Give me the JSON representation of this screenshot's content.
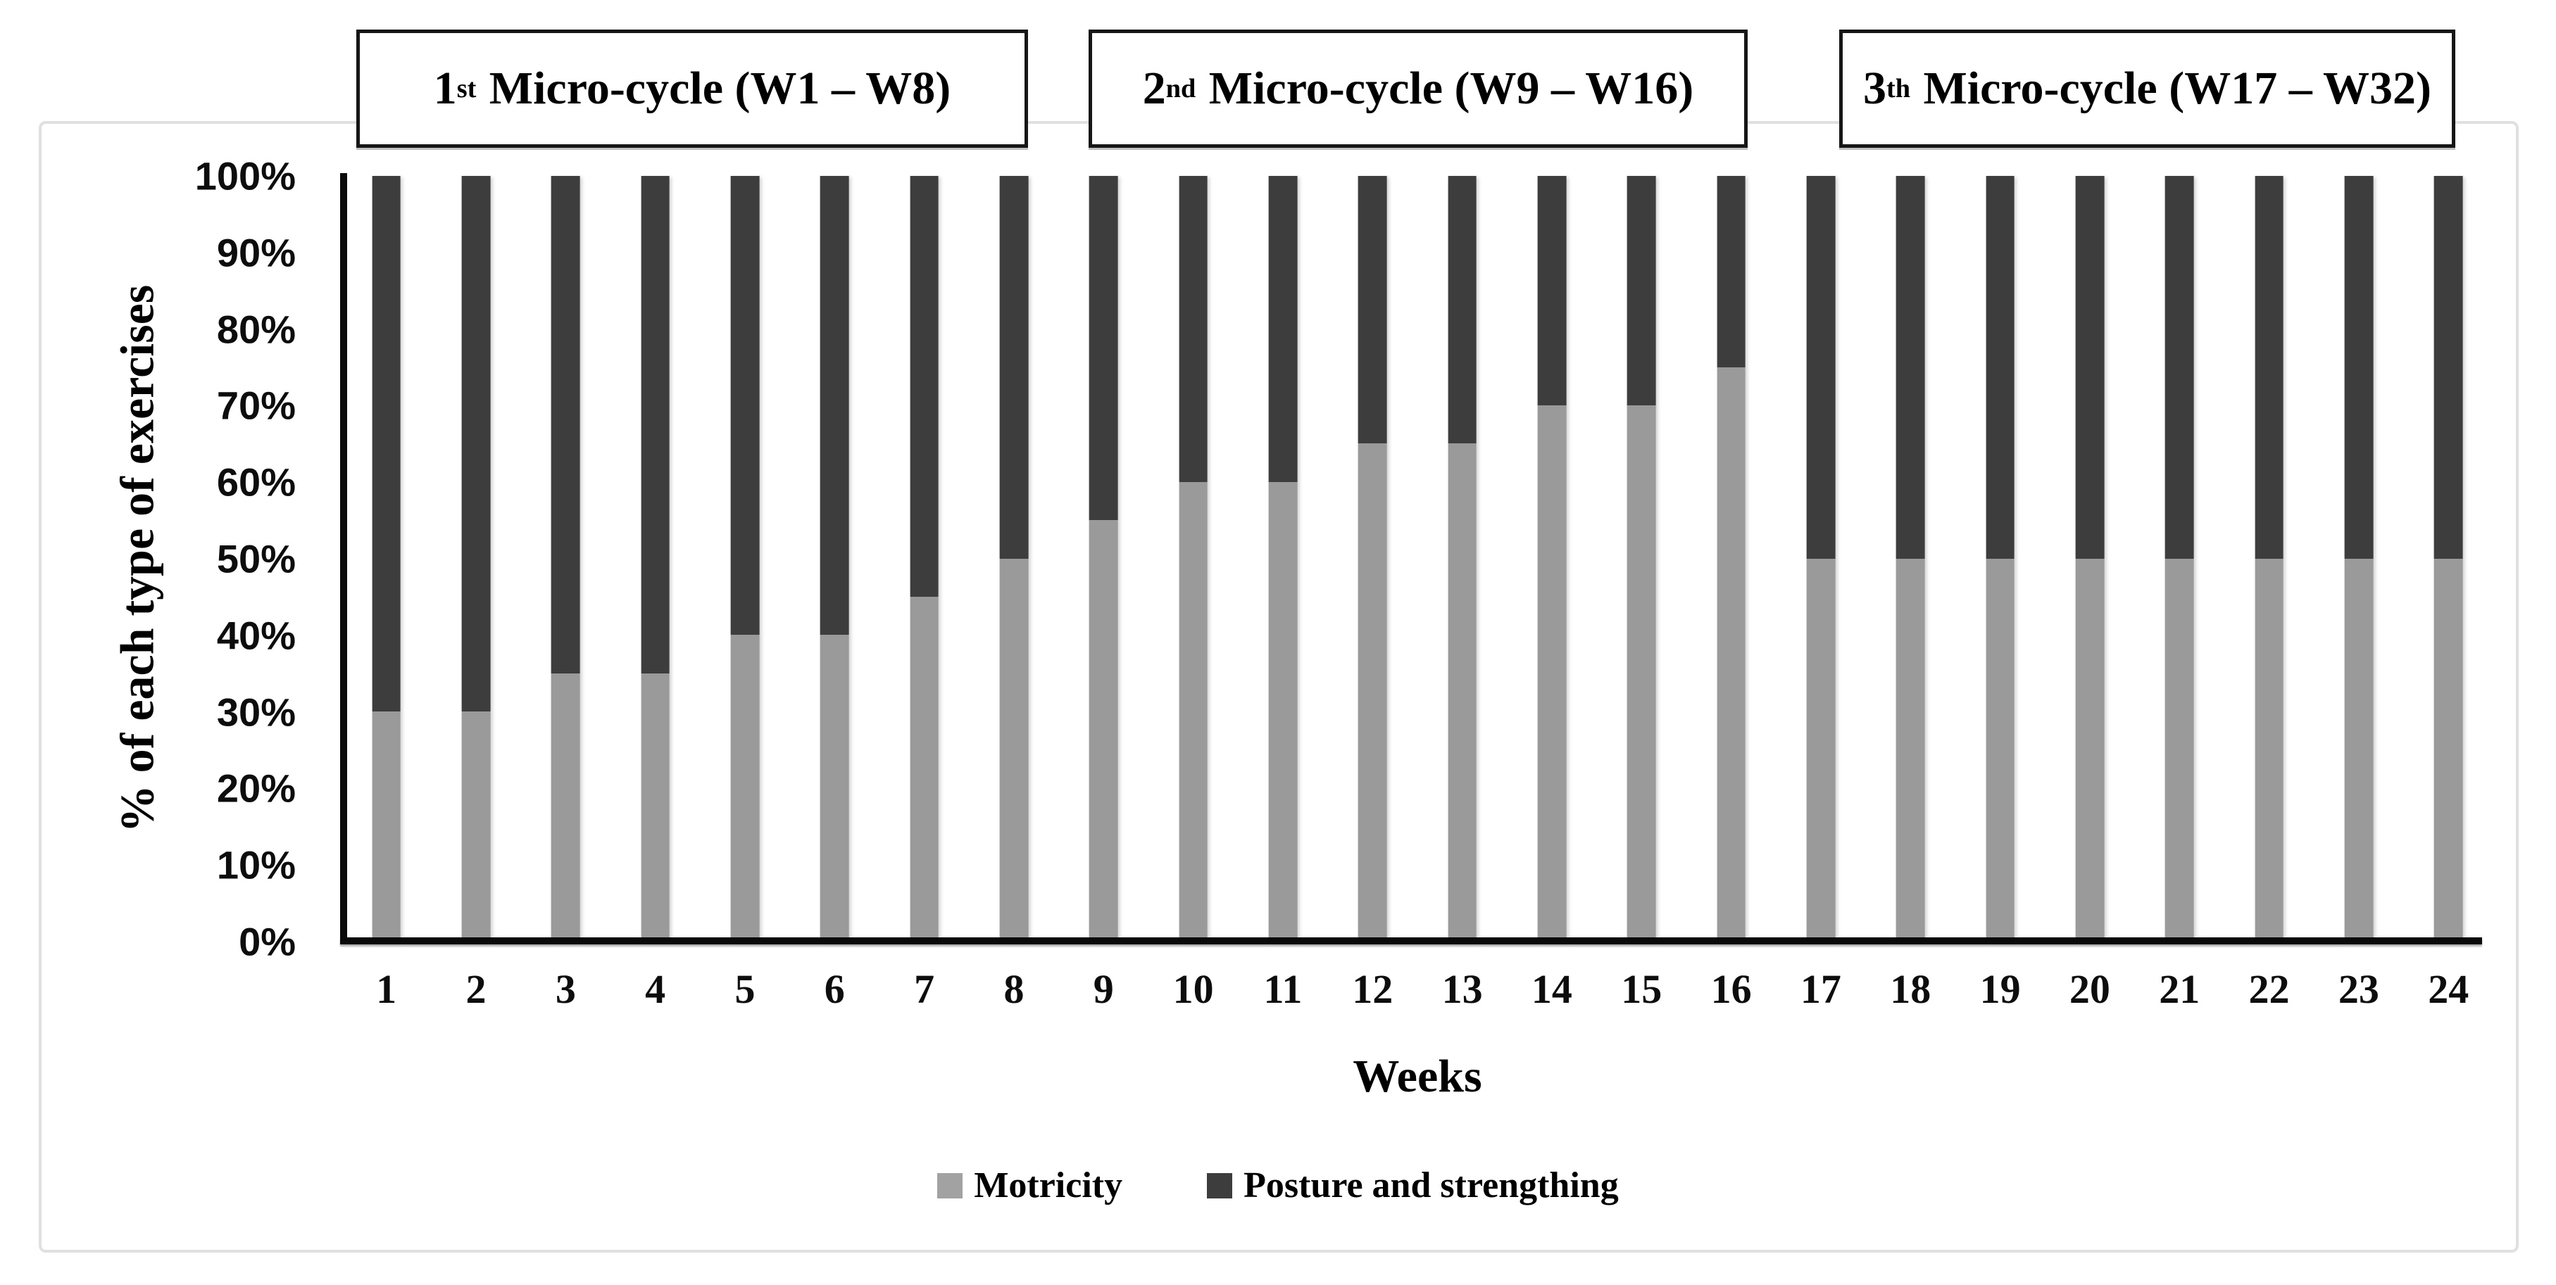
{
  "header": {
    "boxes": [
      {
        "num": "1",
        "ord": "st",
        "rest": "Micro-cycle (W1 – W8)"
      },
      {
        "num": "2",
        "ord": "nd",
        "rest": "Micro-cycle (W9 – W16)"
      },
      {
        "num": "3",
        "ord": "th",
        "rest": "Micro-cycle (W17 – W32)"
      }
    ]
  },
  "axes": {
    "y_title": "% of each type of exercises",
    "x_title": "Weeks"
  },
  "colors": {
    "motricity": "#9a9a9a",
    "posture": "#3d3d3d",
    "legend_motricity_swatch": "#a2a2a2",
    "axis_line": "#0a0a0a",
    "figure_border": "#e0e0e0"
  },
  "chart_data": {
    "type": "bar",
    "stacked": true,
    "title": "",
    "xlabel": "Weeks",
    "ylabel": "% of each type of exercises",
    "ylim": [
      0,
      100
    ],
    "grid": false,
    "legend_position": "bottom",
    "categories": [
      "1",
      "2",
      "3",
      "4",
      "5",
      "6",
      "7",
      "8",
      "9",
      "10",
      "11",
      "12",
      "13",
      "14",
      "15",
      "16",
      "17",
      "18",
      "19",
      "20",
      "21",
      "22",
      "23",
      "24"
    ],
    "yticks": [
      "100%",
      "90%",
      "80%",
      "70%",
      "60%",
      "50%",
      "40%",
      "30%",
      "20%",
      "10%",
      "0%"
    ],
    "series": [
      {
        "name": "Motricity",
        "color": "#9a9a9a",
        "values": [
          30,
          30,
          35,
          35,
          40,
          40,
          45,
          50,
          55,
          60,
          60,
          65,
          65,
          70,
          70,
          75,
          50,
          50,
          50,
          50,
          50,
          50,
          50,
          50
        ]
      },
      {
        "name": "Posture and strengthing",
        "color": "#3d3d3d",
        "values": [
          70,
          70,
          65,
          65,
          60,
          60,
          55,
          50,
          45,
          40,
          40,
          35,
          35,
          30,
          30,
          25,
          50,
          50,
          50,
          50,
          50,
          50,
          50,
          50
        ]
      }
    ]
  }
}
